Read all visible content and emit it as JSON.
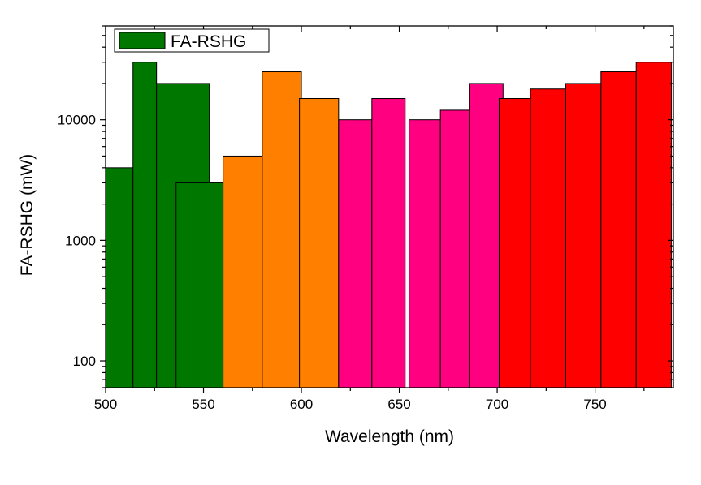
{
  "chart_data": {
    "type": "bar",
    "title": "",
    "xlabel": "Wavelength (nm)",
    "ylabel": "FA-RSHG (mW)",
    "xlim": [
      500,
      790
    ],
    "ylim": [
      60,
      60000
    ],
    "yscale": "log",
    "xticks": [
      500,
      550,
      600,
      650,
      700,
      750
    ],
    "yticks": [
      100,
      1000,
      10000
    ],
    "grid": false,
    "legend": {
      "position": "top-left",
      "entries": [
        "FA-RSHG"
      ]
    },
    "series": [
      {
        "name": "FA-RSHG",
        "bars": [
          {
            "x0": 500,
            "x1": 514,
            "value": 4000,
            "color": "#007800"
          },
          {
            "x0": 514,
            "x1": 526,
            "value": 30000,
            "color": "#007800"
          },
          {
            "x0": 526,
            "x1": 553,
            "value": 20000,
            "color": "#007800"
          },
          {
            "x0": 536,
            "x1": 560,
            "value": 3000,
            "color": "#007800"
          },
          {
            "x0": 560,
            "x1": 580,
            "value": 5000,
            "color": "#ff7f00"
          },
          {
            "x0": 580,
            "x1": 600,
            "value": 25000,
            "color": "#ff7f00"
          },
          {
            "x0": 599,
            "x1": 619,
            "value": 15000,
            "color": "#ff7f00"
          },
          {
            "x0": 619,
            "x1": 636,
            "value": 10000,
            "color": "#ff0080"
          },
          {
            "x0": 636,
            "x1": 653,
            "value": 15000,
            "color": "#ff0080"
          },
          {
            "x0": 655,
            "x1": 671,
            "value": 10000,
            "color": "#ff0080"
          },
          {
            "x0": 671,
            "x1": 687,
            "value": 12000,
            "color": "#ff0080"
          },
          {
            "x0": 686,
            "x1": 703,
            "value": 20000,
            "color": "#ff0080"
          },
          {
            "x0": 701,
            "x1": 717,
            "value": 15000,
            "color": "#ff0000"
          },
          {
            "x0": 717,
            "x1": 735,
            "value": 18000,
            "color": "#ff0000"
          },
          {
            "x0": 735,
            "x1": 753,
            "value": 20000,
            "color": "#ff0000"
          },
          {
            "x0": 753,
            "x1": 771,
            "value": 25000,
            "color": "#ff0000"
          },
          {
            "x0": 771,
            "x1": 789,
            "value": 30000,
            "color": "#ff0000"
          }
        ]
      }
    ]
  }
}
